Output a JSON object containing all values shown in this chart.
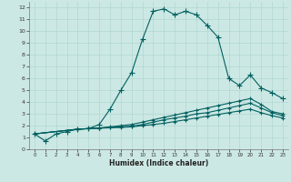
{
  "xlabel": "Humidex (Indice chaleur)",
  "bg_color": "#cce8e4",
  "grid_color": "#b0d8d0",
  "line_color": "#006060",
  "xlim": [
    -0.5,
    23.5
  ],
  "ylim": [
    0,
    12.5
  ],
  "xticks": [
    0,
    1,
    2,
    3,
    4,
    5,
    6,
    7,
    8,
    9,
    10,
    11,
    12,
    13,
    14,
    15,
    16,
    17,
    18,
    19,
    20,
    21,
    22,
    23
  ],
  "yticks": [
    0,
    1,
    2,
    3,
    4,
    5,
    6,
    7,
    8,
    9,
    10,
    11,
    12
  ],
  "curve1_x": [
    0,
    1,
    2,
    3,
    4,
    5,
    6,
    7,
    8,
    9,
    10,
    11,
    12,
    13,
    14,
    15,
    16,
    17,
    18,
    19,
    20,
    21,
    22,
    23
  ],
  "curve1_y": [
    1.3,
    0.7,
    1.3,
    1.5,
    1.7,
    1.75,
    2.1,
    3.4,
    5.0,
    6.5,
    9.3,
    11.7,
    11.9,
    11.4,
    11.7,
    11.4,
    10.5,
    9.5,
    6.0,
    5.4,
    6.3,
    5.2,
    4.8,
    4.3
  ],
  "curve2_x": [
    0,
    4,
    5,
    6,
    7,
    8,
    9,
    10,
    11,
    12,
    13,
    14,
    15,
    16,
    17,
    18,
    19,
    20,
    21,
    22,
    23
  ],
  "curve2_y": [
    1.3,
    1.7,
    1.75,
    1.8,
    1.9,
    2.0,
    2.1,
    2.3,
    2.5,
    2.7,
    2.9,
    3.1,
    3.3,
    3.5,
    3.7,
    3.9,
    4.1,
    4.3,
    3.8,
    3.2,
    3.0
  ],
  "curve3_x": [
    0,
    4,
    5,
    6,
    7,
    8,
    9,
    10,
    11,
    12,
    13,
    14,
    15,
    16,
    17,
    18,
    19,
    20,
    21,
    22,
    23
  ],
  "curve3_y": [
    1.3,
    1.7,
    1.75,
    1.8,
    1.85,
    1.9,
    1.95,
    2.1,
    2.3,
    2.5,
    2.65,
    2.8,
    3.0,
    3.1,
    3.3,
    3.5,
    3.7,
    3.9,
    3.5,
    3.1,
    2.85
  ],
  "curve4_x": [
    0,
    4,
    5,
    6,
    7,
    8,
    9,
    10,
    11,
    12,
    13,
    14,
    15,
    16,
    17,
    18,
    19,
    20,
    21,
    22,
    23
  ],
  "curve4_y": [
    1.3,
    1.7,
    1.75,
    1.78,
    1.82,
    1.85,
    1.9,
    2.0,
    2.1,
    2.2,
    2.35,
    2.5,
    2.65,
    2.8,
    2.95,
    3.1,
    3.25,
    3.4,
    3.1,
    2.85,
    2.65
  ]
}
